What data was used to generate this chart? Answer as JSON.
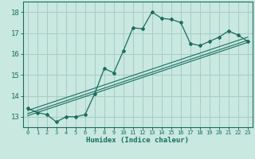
{
  "title": "",
  "xlabel": "Humidex (Indice chaleur)",
  "ylabel": "",
  "background_color": "#c8e8e0",
  "grid_color": "#a8ccc4",
  "line_color": "#1a6e60",
  "xlim": [
    -0.5,
    23.5
  ],
  "ylim": [
    12.5,
    18.5
  ],
  "xticks": [
    0,
    1,
    2,
    3,
    4,
    5,
    6,
    7,
    8,
    9,
    10,
    11,
    12,
    13,
    14,
    15,
    16,
    17,
    18,
    19,
    20,
    21,
    22,
    23
  ],
  "yticks": [
    13,
    14,
    15,
    16,
    17,
    18
  ],
  "main_curve_x": [
    0,
    1,
    2,
    3,
    4,
    5,
    6,
    7,
    8,
    9,
    10,
    11,
    12,
    13,
    14,
    15,
    16,
    17,
    18,
    19,
    20,
    21,
    22,
    23
  ],
  "main_curve_y": [
    13.4,
    13.2,
    13.1,
    12.75,
    13.0,
    13.0,
    13.1,
    14.1,
    15.3,
    15.1,
    16.15,
    17.25,
    17.2,
    18.0,
    17.7,
    17.65,
    17.5,
    16.5,
    16.4,
    16.6,
    16.8,
    17.1,
    16.9,
    16.6
  ],
  "line1_x": [
    0,
    23
  ],
  "line1_y": [
    13.05,
    16.55
  ],
  "line2_x": [
    0,
    23
  ],
  "line2_y": [
    13.15,
    16.65
  ],
  "line3_x": [
    0,
    23
  ],
  "line3_y": [
    13.3,
    16.8
  ]
}
